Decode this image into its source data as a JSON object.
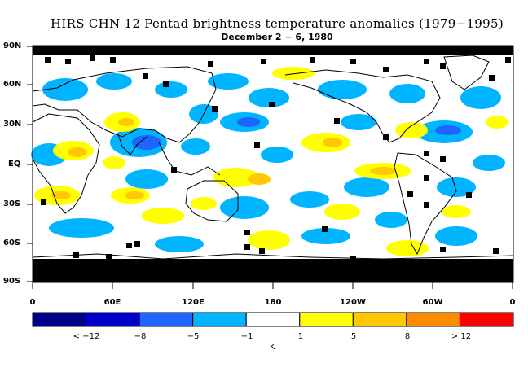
{
  "title": "HIRS CHN 12 Pentad brightness temperature anomalies (1979−1995)",
  "subtitle": "December 2 − 6, 1980",
  "lat_labels": [
    "90N",
    "60N",
    "30N",
    "EQ",
    "30S",
    "60S",
    "90S"
  ],
  "lon_labels": [
    "0",
    "60E",
    "120E",
    "180",
    "120W",
    "60W",
    "0"
  ],
  "colorbar": {
    "labels": [
      "< −12",
      "−8",
      "−5",
      "−1",
      "1",
      "5",
      "8",
      "> 12"
    ],
    "unit": "K",
    "colors": [
      "#00008b",
      "#0000cd",
      "#1e64ff",
      "#00b4ff",
      "#ffffff",
      "#ffff00",
      "#ffc800",
      "#ff8c00",
      "#ff0000"
    ]
  },
  "colors": {
    "missing": "#000000",
    "coast": "#000000",
    "cold": "#00b4ff",
    "cold2": "#1e64ff",
    "warm": "#ffff00",
    "warm2": "#ffc800"
  }
}
